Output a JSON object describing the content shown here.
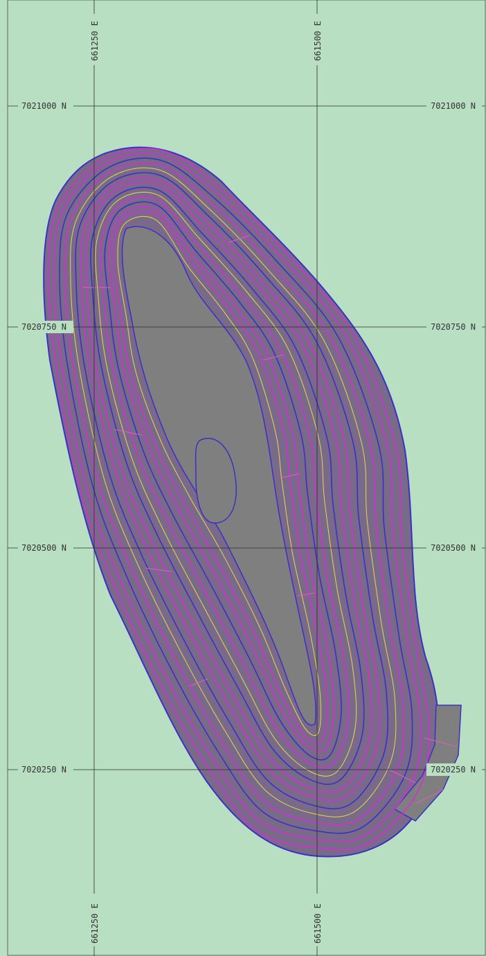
{
  "map": {
    "colors": {
      "background": "#b9dfc2",
      "border": "#5a6b5c",
      "pit_fill": "#7f7f7f",
      "pit_outer": "#7a6a8a",
      "contour_magenta": "#d22fd6",
      "contour_blue": "#3b2fc7",
      "ramp_yellow": "#e8d84a",
      "ramp_pink": "#e25cc4",
      "gridline": "#2b2b2b"
    },
    "grid": {
      "easting_top": [
        "661250 E",
        "661500 E"
      ],
      "easting_bottom": [
        "661250 E",
        "661500 E"
      ],
      "northing_left": [
        "7021000 N",
        "7020750 N",
        "7020500 N",
        "7020250 N"
      ],
      "northing_right": [
        "7021000 N",
        "7020750 N",
        "7020500 N",
        "7020250 N"
      ]
    }
  }
}
